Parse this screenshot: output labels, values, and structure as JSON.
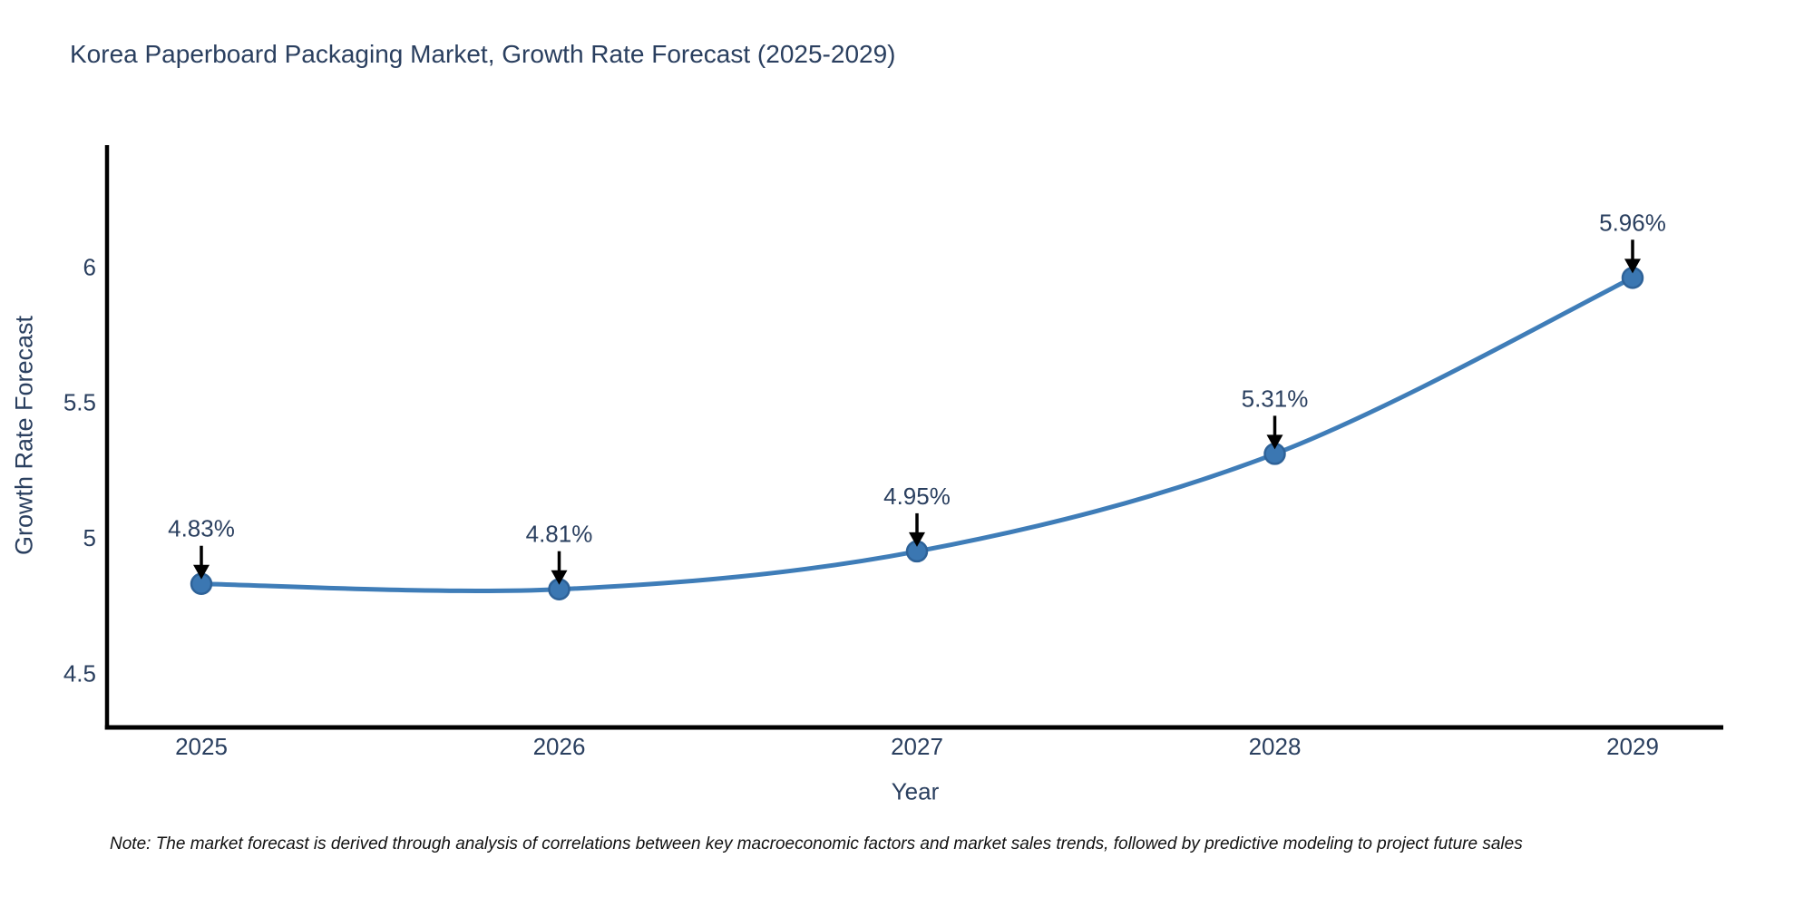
{
  "title": "Korea Paperboard Packaging Market, Growth Rate Forecast (2025-2029)",
  "note": "Note: The market forecast is derived through analysis of correlations between key macroeconomic factors and market sales trends, followed by predictive modeling to project future sales",
  "chart_data": {
    "type": "line",
    "title": "Korea Paperboard Packaging Market, Growth Rate Forecast (2025-2029)",
    "xlabel": "Year",
    "ylabel": "Growth Rate Forecast",
    "x": [
      "2025",
      "2026",
      "2027",
      "2028",
      "2029"
    ],
    "values": [
      4.83,
      4.81,
      4.95,
      5.31,
      5.96
    ],
    "point_labels": [
      "4.83%",
      "4.81%",
      "4.95%",
      "5.31%",
      "5.96%"
    ],
    "yticks": [
      "4.5",
      "5",
      "5.5",
      "6"
    ],
    "ytick_values": [
      4.5,
      5.0,
      5.5,
      6.0
    ],
    "ylim": [
      4.3,
      6.45
    ],
    "grid": false,
    "legend": "none",
    "line_shape": "spline",
    "colors": {
      "line": "#3f7db8",
      "marker_fill": "#3b77b2",
      "marker_edge": "#2e6298",
      "axis": "#000000",
      "text": "#2a3f5f",
      "annotation_arrow": "#000000",
      "note_text": "#111111",
      "background": "#ffffff"
    }
  }
}
